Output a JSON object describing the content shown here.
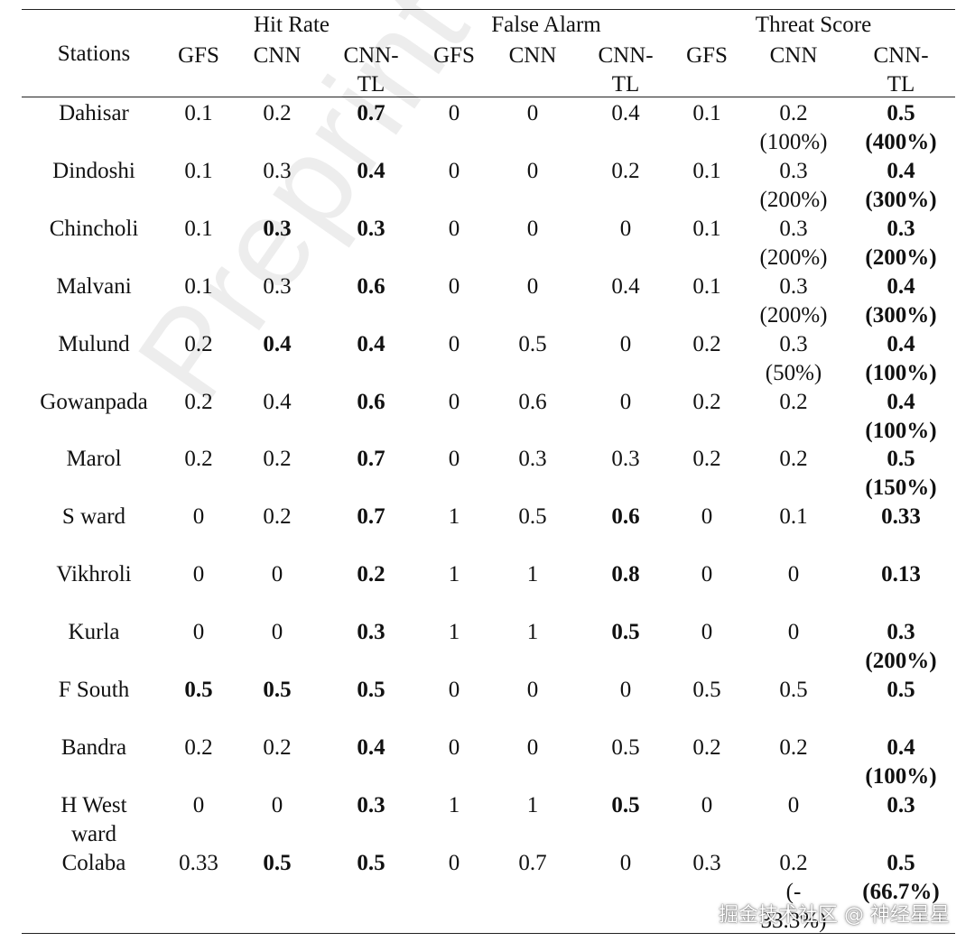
{
  "table": {
    "stations_header": "Stations",
    "groups": [
      "Hit Rate",
      "False Alarm",
      "Threat Score"
    ],
    "subheaders": [
      "GFS",
      "CNN",
      "CNN-",
      "TL"
    ],
    "rows": [
      {
        "station": [
          "Dahisar"
        ],
        "cells": [
          [
            "0.1",
            0
          ],
          [
            "0.2",
            0
          ],
          [
            "0.7",
            1
          ],
          [
            "0",
            0
          ],
          [
            "0",
            0
          ],
          [
            "0.4",
            0
          ],
          [
            "0.1",
            0
          ],
          [
            "0.2|(100%)",
            0
          ],
          [
            "0.5|(400%)",
            1
          ]
        ]
      },
      {
        "station": [
          "Dindoshi"
        ],
        "cells": [
          [
            "0.1",
            0
          ],
          [
            "0.3",
            0
          ],
          [
            "0.4",
            1
          ],
          [
            "0",
            0
          ],
          [
            "0",
            0
          ],
          [
            "0.2",
            0
          ],
          [
            "0.1",
            0
          ],
          [
            "0.3|(200%)",
            0
          ],
          [
            "0.4|(300%)",
            1
          ]
        ]
      },
      {
        "station": [
          "Chincholi"
        ],
        "cells": [
          [
            "0.1",
            0
          ],
          [
            "0.3",
            1
          ],
          [
            "0.3",
            1
          ],
          [
            "0",
            0
          ],
          [
            "0",
            0
          ],
          [
            "0",
            0
          ],
          [
            "0.1",
            0
          ],
          [
            "0.3|(200%)",
            0
          ],
          [
            "0.3|(200%)",
            1
          ]
        ]
      },
      {
        "station": [
          "Malvani"
        ],
        "cells": [
          [
            "0.1",
            0
          ],
          [
            "0.3",
            0
          ],
          [
            "0.6",
            1
          ],
          [
            "0",
            0
          ],
          [
            "0",
            0
          ],
          [
            "0.4",
            0
          ],
          [
            "0.1",
            0
          ],
          [
            "0.3|(200%)",
            0
          ],
          [
            "0.4|(300%)",
            1
          ]
        ]
      },
      {
        "station": [
          "Mulund"
        ],
        "cells": [
          [
            "0.2",
            0
          ],
          [
            "0.4",
            1
          ],
          [
            "0.4",
            1
          ],
          [
            "0",
            0
          ],
          [
            "0.5",
            0
          ],
          [
            "0",
            0
          ],
          [
            "0.2",
            0
          ],
          [
            "0.3|(50%)",
            0
          ],
          [
            "0.4|(100%)",
            1
          ]
        ]
      },
      {
        "station": [
          "Gowanpada"
        ],
        "cells": [
          [
            "0.2",
            0
          ],
          [
            "0.4",
            0
          ],
          [
            "0.6",
            1
          ],
          [
            "0",
            0
          ],
          [
            "0.6",
            0
          ],
          [
            "0",
            0
          ],
          [
            "0.2",
            0
          ],
          [
            "0.2",
            0
          ],
          [
            "0.4|(100%)",
            1
          ]
        ]
      },
      {
        "station": [
          "Marol"
        ],
        "cells": [
          [
            "0.2",
            0
          ],
          [
            "0.2",
            0
          ],
          [
            "0.7",
            1
          ],
          [
            "0",
            0
          ],
          [
            "0.3",
            0
          ],
          [
            "0.3",
            0
          ],
          [
            "0.2",
            0
          ],
          [
            "0.2",
            0
          ],
          [
            "0.5|(150%)",
            1
          ]
        ]
      },
      {
        "station": [
          "S ward"
        ],
        "cells": [
          [
            "0",
            0
          ],
          [
            "0.2",
            0
          ],
          [
            "0.7",
            1
          ],
          [
            "1",
            0
          ],
          [
            "0.5",
            0
          ],
          [
            "0.6",
            1
          ],
          [
            "0",
            0
          ],
          [
            "0.1",
            0
          ],
          [
            "0.33",
            1
          ]
        ]
      },
      {
        "station": [
          "Vikhroli"
        ],
        "cells": [
          [
            "0",
            0
          ],
          [
            "0",
            0
          ],
          [
            "0.2",
            1
          ],
          [
            "1",
            0
          ],
          [
            "1",
            0
          ],
          [
            "0.8",
            1
          ],
          [
            "0",
            0
          ],
          [
            "0",
            0
          ],
          [
            "0.13",
            1
          ]
        ]
      },
      {
        "station": [
          "Kurla"
        ],
        "cells": [
          [
            "0",
            0
          ],
          [
            "0",
            0
          ],
          [
            "0.3",
            1
          ],
          [
            "1",
            0
          ],
          [
            "1",
            0
          ],
          [
            "0.5",
            1
          ],
          [
            "0",
            0
          ],
          [
            "0",
            0
          ],
          [
            "0.3|(200%)",
            1
          ]
        ]
      },
      {
        "station": [
          "F South"
        ],
        "cells": [
          [
            "0.5",
            1
          ],
          [
            "0.5",
            1
          ],
          [
            "0.5",
            1
          ],
          [
            "0",
            0
          ],
          [
            "0",
            0
          ],
          [
            "0",
            0
          ],
          [
            "0.5",
            0
          ],
          [
            "0.5",
            0
          ],
          [
            "0.5",
            1
          ]
        ]
      },
      {
        "station": [
          "Bandra"
        ],
        "cells": [
          [
            "0.2",
            0
          ],
          [
            "0.2",
            0
          ],
          [
            "0.4",
            1
          ],
          [
            "0",
            0
          ],
          [
            "0",
            0
          ],
          [
            "0.5",
            0
          ],
          [
            "0.2",
            0
          ],
          [
            "0.2",
            0
          ],
          [
            "0.4|(100%)",
            1
          ]
        ]
      },
      {
        "station": [
          "H West",
          "ward"
        ],
        "cells": [
          [
            "0",
            0
          ],
          [
            "0",
            0
          ],
          [
            "0.3",
            1
          ],
          [
            "1",
            0
          ],
          [
            "1",
            0
          ],
          [
            "0.5",
            1
          ],
          [
            "0",
            0
          ],
          [
            "0",
            0
          ],
          [
            "0.3",
            1
          ]
        ]
      },
      {
        "station": [
          "Colaba"
        ],
        "cells": [
          [
            "0.33",
            0
          ],
          [
            "0.5",
            1
          ],
          [
            "0.5",
            1
          ],
          [
            "0",
            0
          ],
          [
            "0.7",
            0
          ],
          [
            "0",
            0
          ],
          [
            "0.3",
            0
          ],
          [
            "0.2|(-|33.3%)",
            0
          ],
          [
            "0.5|(66.7%)",
            1
          ]
        ]
      }
    ]
  },
  "watermark": "Preprint not peer review",
  "source_tag": "掘金技术社区 @ 神经星星"
}
